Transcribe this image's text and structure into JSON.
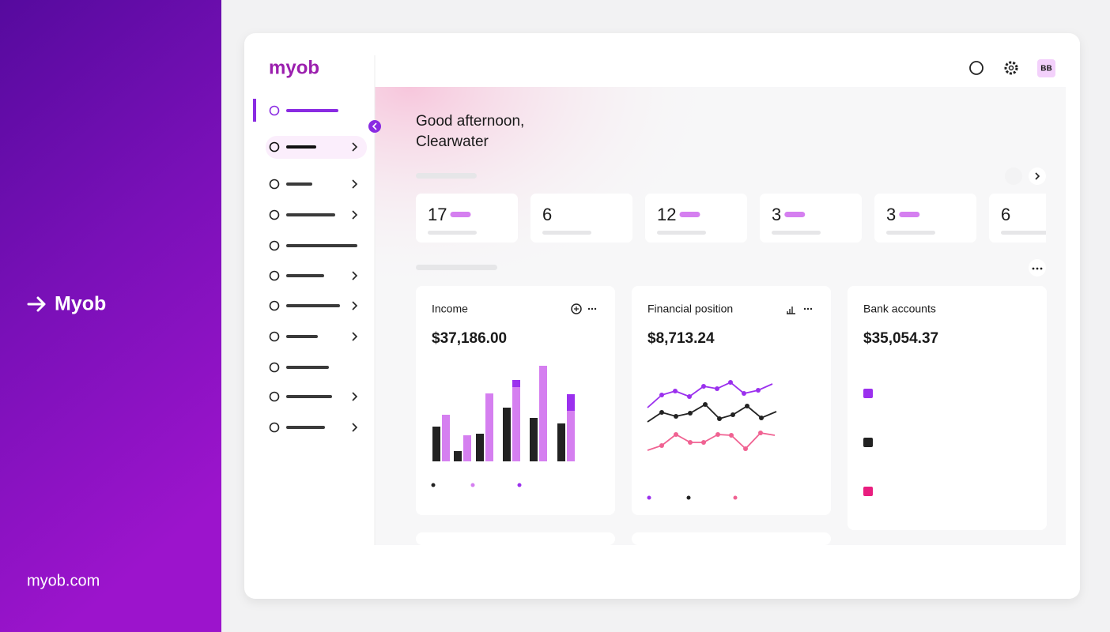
{
  "banner": {
    "title": "Myob",
    "url": "myob.com"
  },
  "app": {
    "logo": "myob",
    "avatar": "BB",
    "greeting": [
      "Good afternoon,",
      "Clearwater"
    ],
    "stats": [
      17,
      6,
      12,
      3,
      3,
      6
    ],
    "widgets": [
      {
        "title": "Income",
        "amount": "$37,186.00"
      },
      {
        "title": "Financial position",
        "amount": "$8,713.24"
      },
      {
        "title": "Bank accounts",
        "amount": "$35,054.37"
      }
    ]
  }
}
